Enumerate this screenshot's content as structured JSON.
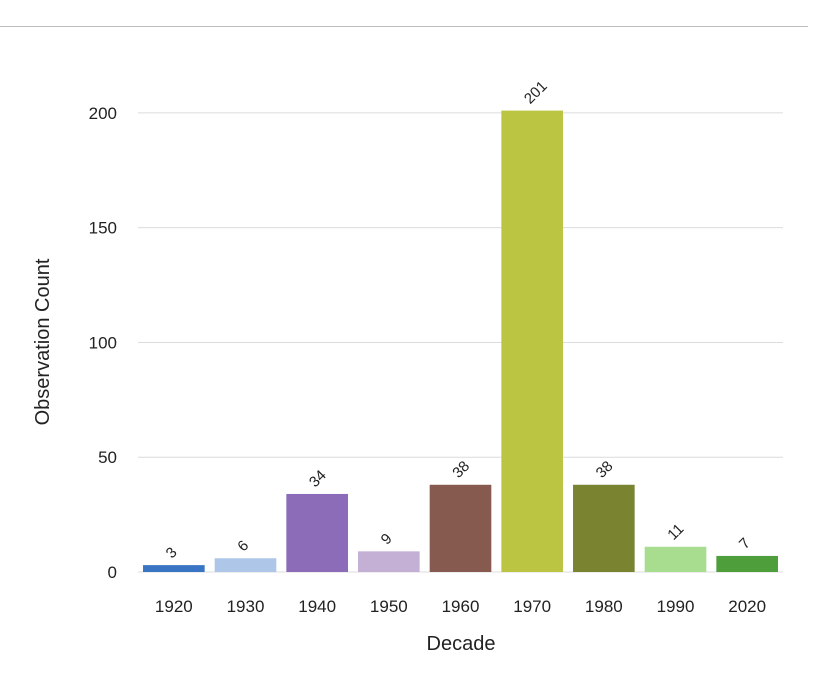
{
  "chart_data": {
    "type": "bar",
    "title": "",
    "xlabel": "Decade",
    "ylabel": "Observation Count",
    "categories": [
      "1920",
      "1930",
      "1940",
      "1950",
      "1960",
      "1970",
      "1980",
      "1990",
      "2020"
    ],
    "values": [
      3,
      6,
      34,
      9,
      38,
      201,
      38,
      11,
      7
    ],
    "colors": [
      "#3a75c4",
      "#aec7e8",
      "#8c6bb8",
      "#c5b0d5",
      "#875a50",
      "#bcc541",
      "#7a8430",
      "#a8dd8f",
      "#4e9e3c"
    ],
    "ylim": [
      0,
      220
    ],
    "yticks": [
      0,
      50,
      100,
      150,
      200
    ],
    "grid": true,
    "legend": "none"
  }
}
